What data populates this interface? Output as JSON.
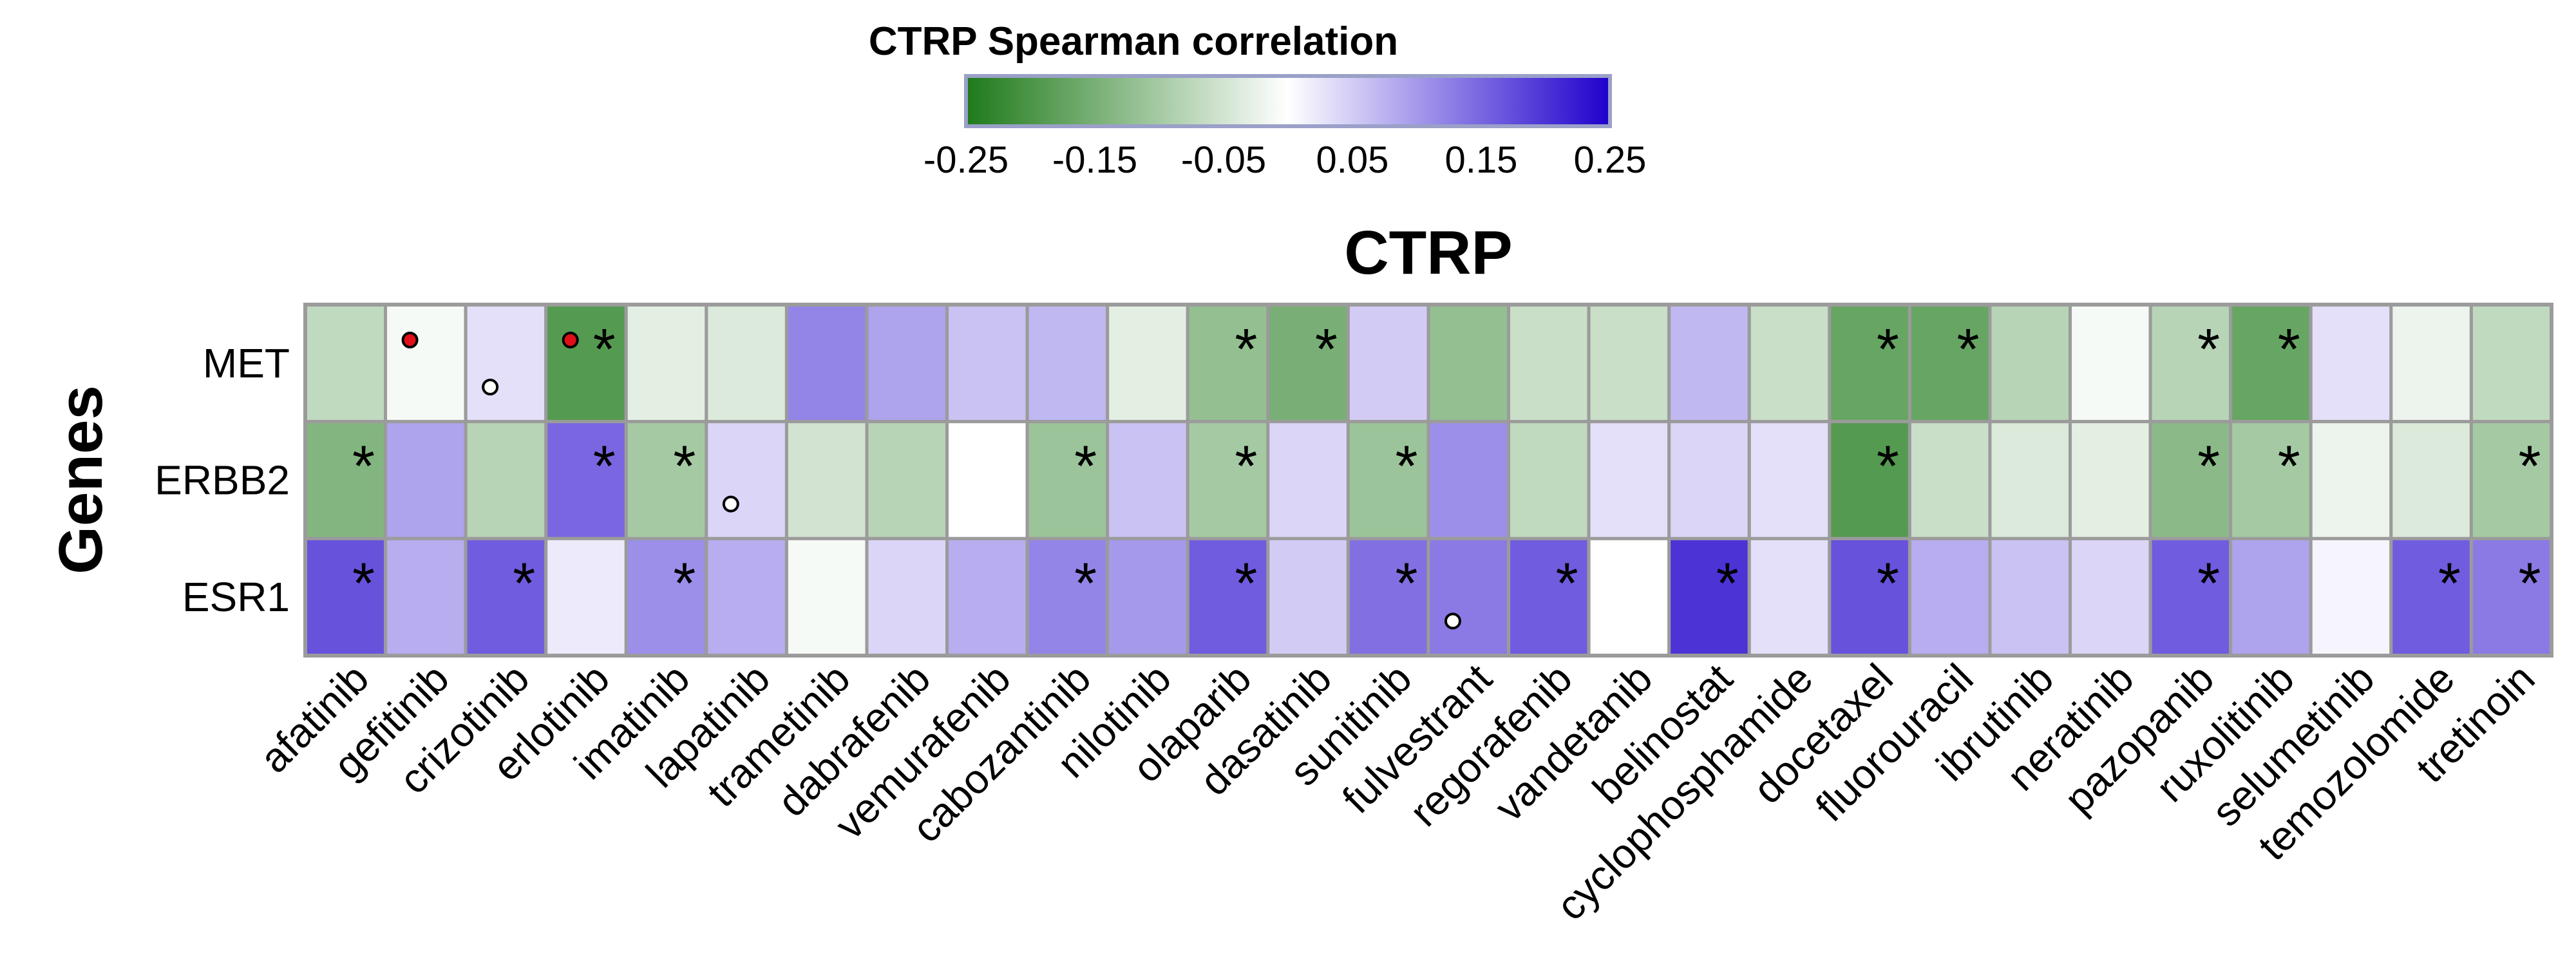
{
  "chart_data": {
    "type": "heatmap",
    "title": "CTRP",
    "ylabel": "Genes",
    "xlabel": "",
    "legend": {
      "title": "CTRP Spearman correlation",
      "ticks": [
        "-0.25",
        "-0.15",
        "-0.05",
        "0.05",
        "0.15",
        "0.25"
      ],
      "range": [
        -0.25,
        0.25
      ],
      "colors": {
        "low": "#1f7a1a",
        "mid": "#ffffff",
        "high": "#1f00cc"
      },
      "placement": "top-center"
    },
    "rows": [
      "MET",
      "ERBB2",
      "ESR1"
    ],
    "columns": [
      "afatinib",
      "gefitinib",
      "crizotinib",
      "erlotinib",
      "imatinib",
      "lapatinib",
      "trametinib",
      "dabrafenib",
      "vemurafenib",
      "cabozantinib",
      "nilotinib",
      "olaparib",
      "dasatinib",
      "sunitinib",
      "fulvestrant",
      "regorafenib",
      "vandetanib",
      "belinostat",
      "cyclophosphamide",
      "docetaxel",
      "fluorouracil",
      "ibrutinib",
      "neratinib",
      "pazopanib",
      "ruxolitinib",
      "selumetinib",
      "temozolomide",
      "tretinoin"
    ],
    "values": [
      [
        -0.07,
        -0.01,
        0.03,
        -0.19,
        -0.03,
        -0.04,
        0.12,
        0.09,
        0.06,
        0.07,
        -0.03,
        -0.12,
        -0.15,
        0.05,
        -0.12,
        -0.06,
        -0.06,
        0.07,
        -0.06,
        -0.17,
        -0.17,
        -0.08,
        -0.01,
        -0.08,
        -0.17,
        0.03,
        -0.02,
        -0.07
      ],
      [
        -0.14,
        0.09,
        -0.08,
        0.15,
        -0.1,
        0.04,
        -0.05,
        -0.08,
        0.0,
        -0.11,
        0.06,
        -0.1,
        0.04,
        -0.11,
        0.11,
        -0.07,
        0.03,
        0.04,
        0.03,
        -0.19,
        -0.06,
        -0.04,
        -0.03,
        -0.13,
        -0.1,
        -0.02,
        -0.04,
        -0.1
      ],
      [
        0.17,
        0.08,
        0.16,
        0.02,
        0.11,
        0.08,
        -0.01,
        0.04,
        0.08,
        0.12,
        0.1,
        0.16,
        0.05,
        0.14,
        0.13,
        0.16,
        0.0,
        0.2,
        0.03,
        0.17,
        0.08,
        0.06,
        0.04,
        0.16,
        0.09,
        0.01,
        0.16,
        0.13
      ]
    ],
    "significant": [
      [
        0,
        0,
        0,
        1,
        0,
        0,
        0,
        0,
        0,
        0,
        0,
        1,
        1,
        0,
        0,
        0,
        0,
        0,
        0,
        1,
        1,
        0,
        0,
        1,
        1,
        0,
        0,
        0
      ],
      [
        1,
        0,
        0,
        1,
        1,
        0,
        0,
        0,
        0,
        1,
        0,
        1,
        0,
        1,
        0,
        0,
        0,
        0,
        0,
        1,
        0,
        0,
        0,
        1,
        1,
        0,
        0,
        1
      ],
      [
        1,
        0,
        1,
        0,
        1,
        0,
        0,
        0,
        0,
        1,
        0,
        1,
        0,
        1,
        0,
        1,
        0,
        1,
        0,
        1,
        0,
        0,
        0,
        1,
        0,
        0,
        1,
        1
      ]
    ],
    "markers": [
      {
        "row": 0,
        "col": 1,
        "kind": "red-dot"
      },
      {
        "row": 0,
        "col": 2,
        "kind": "open-circle"
      },
      {
        "row": 0,
        "col": 3,
        "kind": "red-dot"
      },
      {
        "row": 1,
        "col": 5,
        "kind": "open-circle"
      },
      {
        "row": 2,
        "col": 14,
        "kind": "open-circle"
      }
    ],
    "star_symbol": "*"
  }
}
